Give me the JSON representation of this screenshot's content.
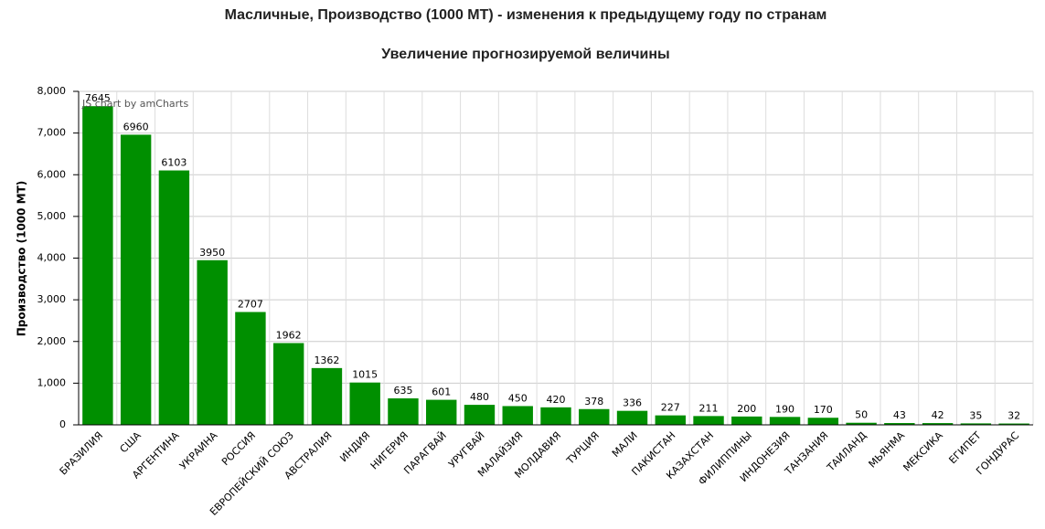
{
  "chart_data": {
    "type": "bar",
    "title": "Масличные, Производство (1000 MT) - изменения к предыдущему году по странам",
    "subtitle": "Увеличение прогнозируемой величины",
    "y_label": "Производство (1000 MT)",
    "watermark": "JS chart by amCharts",
    "categories": [
      "БРАЗИЛИЯ",
      "США",
      "АРГЕНТИНА",
      "УКРАИНА",
      "РОССИЯ",
      "ЕВРОПЕЙСКИЙ СОЮЗ",
      "АВСТРАЛИЯ",
      "ИНДИЯ",
      "НИГЕРИЯ",
      "ПАРАГВАЙ",
      "УРУГВАЙ",
      "МАЛАЙЗИЯ",
      "МОЛДАВИЯ",
      "ТУРЦИЯ",
      "МАЛИ",
      "ПАКИСТАН",
      "КАЗАХСТАН",
      "ФИЛИППИНЫ",
      "ИНДОНЕЗИЯ",
      "ТАНЗАНИЯ",
      "ТАИЛАНД",
      "МЬЯНМА",
      "МЕКСИКА",
      "ЕГИПЕТ",
      "ГОНДУРАС"
    ],
    "values": [
      7645,
      6960,
      6103,
      3950,
      2707,
      1962,
      1362,
      1015,
      635,
      601,
      480,
      450,
      420,
      378,
      336,
      227,
      211,
      200,
      190,
      170,
      50,
      43,
      42,
      35,
      32
    ],
    "color": "#008f00",
    "ylim": [
      0,
      8000
    ],
    "yticks": [
      0,
      {
        "value": 1000,
        "label": "1,000"
      },
      {
        "value": 2000,
        "label": "2,000"
      },
      {
        "value": 3000,
        "label": "3,000"
      },
      {
        "value": 4000,
        "label": "4,000"
      },
      {
        "value": 5000,
        "label": "5,000"
      },
      {
        "value": 6000,
        "label": "6,000"
      },
      {
        "value": 7000,
        "label": "7,000"
      },
      {
        "value": 8000,
        "label": "8,000"
      }
    ],
    "grid": true
  }
}
